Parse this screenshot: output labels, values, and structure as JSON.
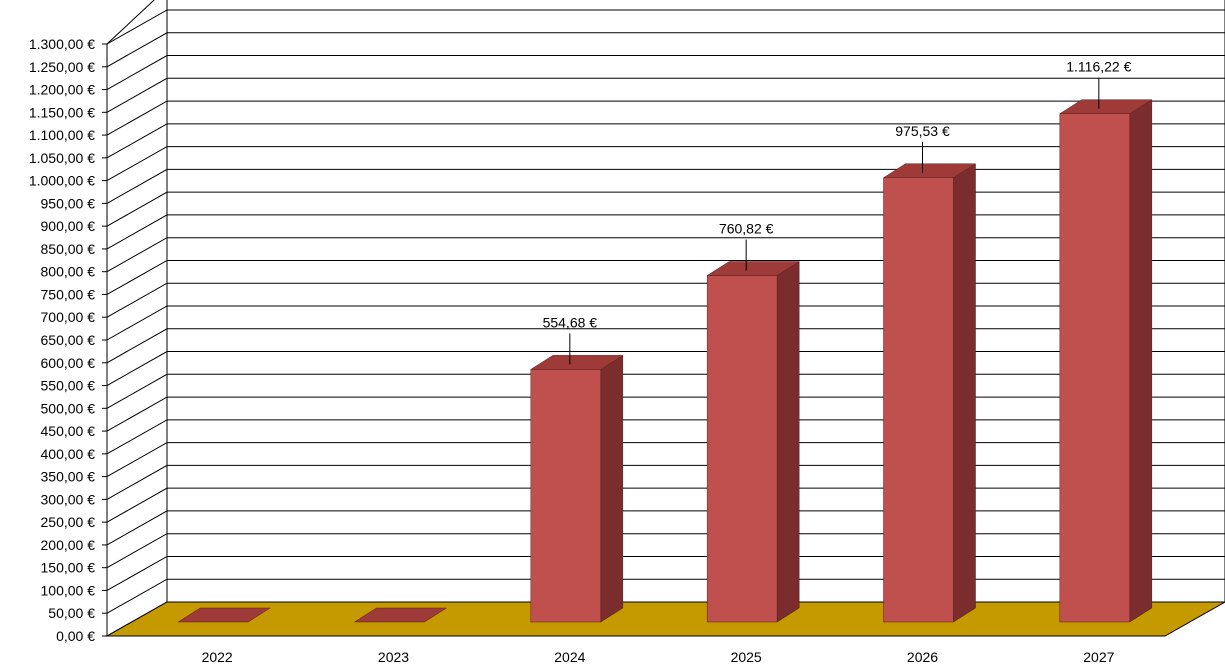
{
  "chart_data": {
    "type": "bar",
    "categories": [
      "2022",
      "2023",
      "2024",
      "2025",
      "2026",
      "2027"
    ],
    "values": [
      0,
      0,
      554.68,
      760.82,
      975.53,
      1116.22
    ],
    "data_labels": [
      "",
      "",
      "554,68 €",
      "760,82 €",
      "975,53 €",
      "1.116,22 €"
    ],
    "ylim": [
      0,
      1300
    ],
    "ytick_step": 50,
    "ytick_labels": [
      "0,00 €",
      "50,00 €",
      "100,00 €",
      "150,00 €",
      "200,00 €",
      "250,00 €",
      "300,00 €",
      "350,00 €",
      "400,00 €",
      "450,00 €",
      "500,00 €",
      "550,00 €",
      "600,00 €",
      "650,00 €",
      "700,00 €",
      "750,00 €",
      "800,00 €",
      "850,00 €",
      "900,00 €",
      "950,00 €",
      "1.000,00 €",
      "1.050,00 €",
      "1.100,00 €",
      "1.150,00 €",
      "1.200,00 €",
      "1.250,00 €",
      "1.300,00 €"
    ],
    "title": "",
    "xlabel": "",
    "ylabel": "",
    "grid": true,
    "style": "3d",
    "colors": {
      "bar_front": "#C0504D",
      "bar_side": "#7B2C2C",
      "bar_top": "#9E3B38",
      "floor": "#C49A00",
      "grid": "#000000"
    }
  }
}
